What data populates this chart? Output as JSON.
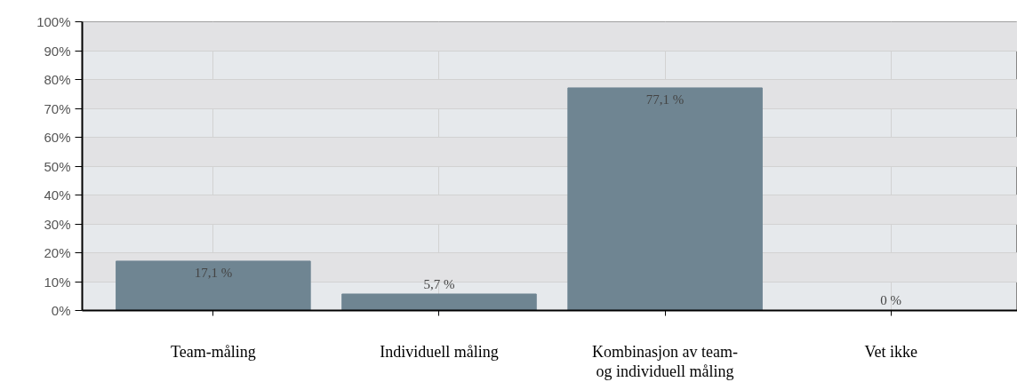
{
  "chart_data": {
    "type": "bar",
    "categories": [
      "Team-måling",
      "Individuell måling",
      "Kombinasjon av team- og individuell måling",
      "Vet ikke"
    ],
    "values": [
      17.1,
      5.7,
      77.1,
      0
    ],
    "value_labels": [
      "17,1 %",
      "5,7 %",
      "77,1 %",
      "0 %"
    ],
    "color": "#6f8592",
    "ylim": [
      0,
      100
    ],
    "yticks": [
      {
        "value": 0,
        "label": "0%"
      },
      {
        "value": 10,
        "label": "10%"
      },
      {
        "value": 20,
        "label": "20%"
      },
      {
        "value": 30,
        "label": "30%"
      },
      {
        "value": 40,
        "label": "40%"
      },
      {
        "value": 50,
        "label": "50%"
      },
      {
        "value": 60,
        "label": "60%"
      },
      {
        "value": 70,
        "label": "70%"
      },
      {
        "value": 80,
        "label": "80%"
      },
      {
        "value": 90,
        "label": "90%"
      },
      {
        "value": 100,
        "label": "100%"
      }
    ],
    "grid": true
  }
}
